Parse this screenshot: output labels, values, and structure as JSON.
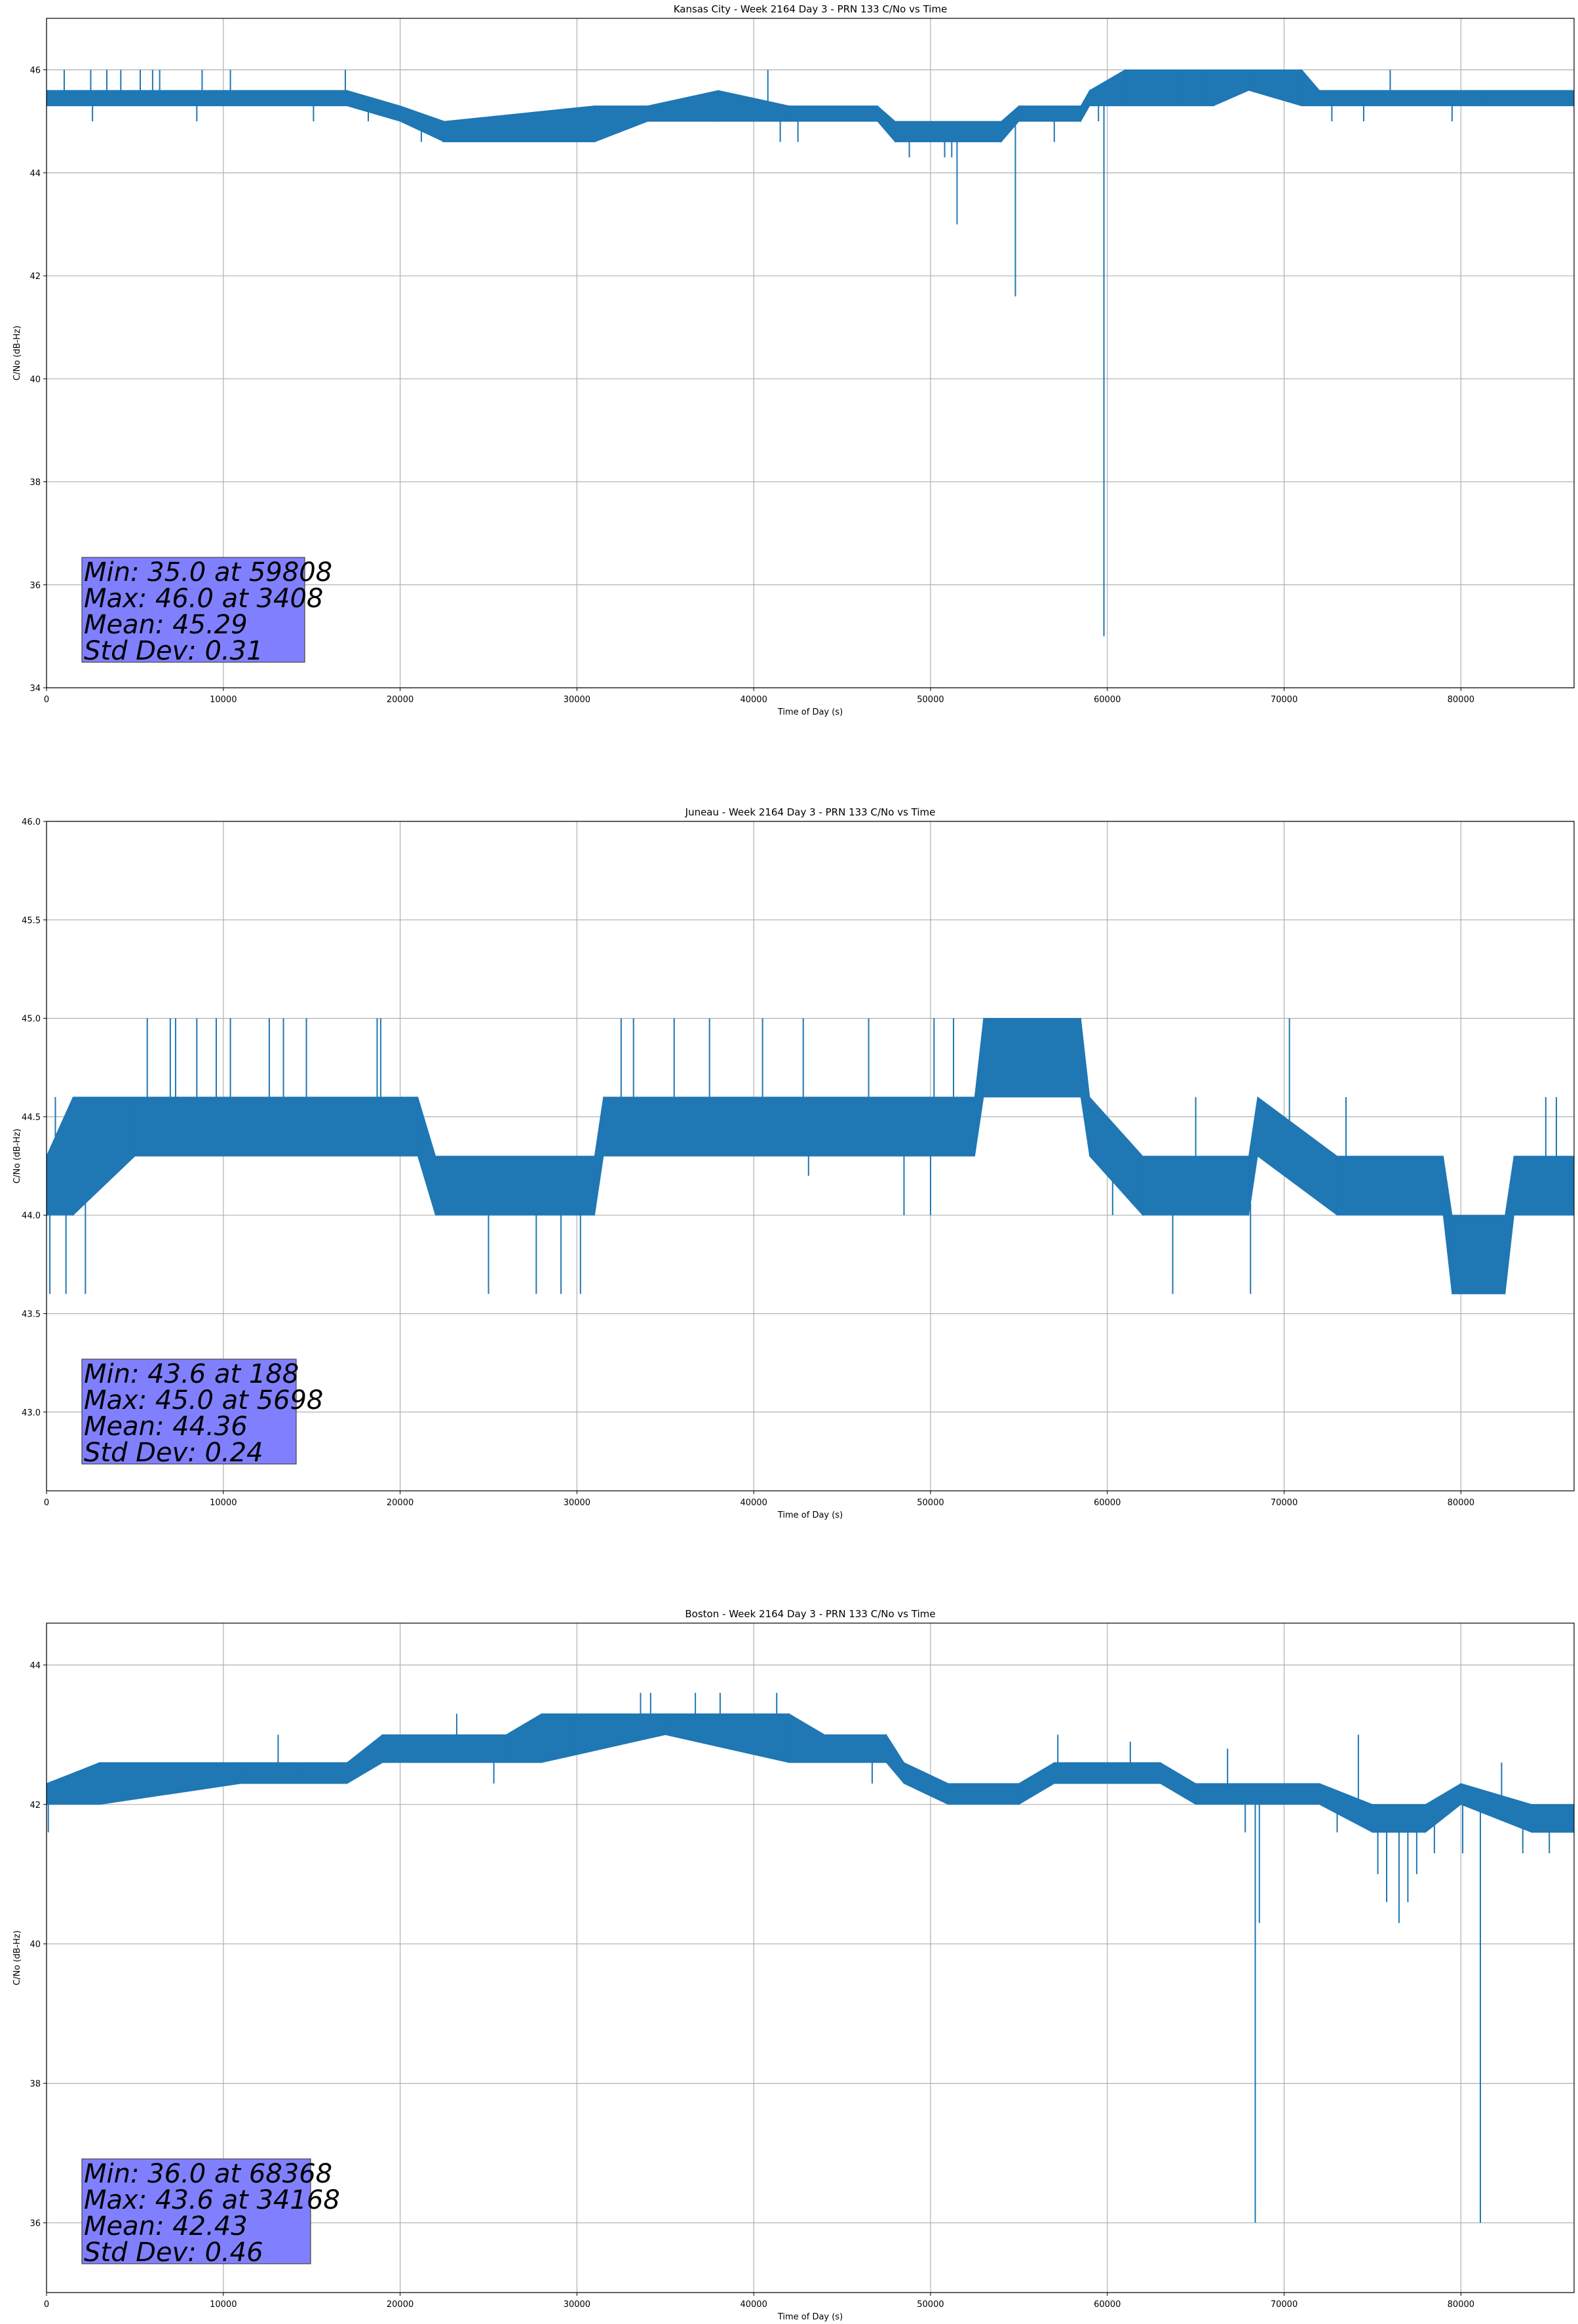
{
  "colors": {
    "series": "#1f77b4",
    "grid": "#b0b0b0",
    "stat_box": "#8080ff"
  },
  "chart_data": [
    {
      "type": "line",
      "title": "Kansas City - Week 2164 Day 3 - PRN 133 C/No vs Time",
      "xlabel": "Time of Day (s)",
      "ylabel": "C/No (dB-Hz)",
      "xlim": [
        0,
        86400
      ],
      "ylim": [
        34,
        47
      ],
      "xticks": [
        0,
        10000,
        20000,
        30000,
        40000,
        50000,
        60000,
        70000,
        80000
      ],
      "yticks": [
        34,
        36,
        38,
        40,
        42,
        44,
        46
      ],
      "ytick_decimals": 0,
      "grid": true,
      "band_series": [
        {
          "x": 0,
          "low": 45.3,
          "high": 45.6
        },
        {
          "x": 17000,
          "low": 45.3,
          "high": 45.6
        },
        {
          "x": 20000,
          "low": 45.0,
          "high": 45.3
        },
        {
          "x": 22500,
          "low": 44.6,
          "high": 45.0
        },
        {
          "x": 31000,
          "low": 44.6,
          "high": 45.3
        },
        {
          "x": 34000,
          "low": 45.0,
          "high": 45.3
        },
        {
          "x": 38000,
          "low": 45.0,
          "high": 45.6
        },
        {
          "x": 42000,
          "low": 45.0,
          "high": 45.3
        },
        {
          "x": 47000,
          "low": 45.0,
          "high": 45.3
        },
        {
          "x": 48000,
          "low": 44.6,
          "high": 45.0
        },
        {
          "x": 54000,
          "low": 44.6,
          "high": 45.0
        },
        {
          "x": 55000,
          "low": 45.0,
          "high": 45.3
        },
        {
          "x": 58500,
          "low": 45.0,
          "high": 45.3
        },
        {
          "x": 59000,
          "low": 45.3,
          "high": 45.6
        },
        {
          "x": 61000,
          "low": 45.3,
          "high": 46.0
        },
        {
          "x": 66000,
          "low": 45.3,
          "high": 46.0
        },
        {
          "x": 68000,
          "low": 45.6,
          "high": 46.0
        },
        {
          "x": 71000,
          "low": 45.3,
          "high": 46.0
        },
        {
          "x": 72000,
          "low": 45.3,
          "high": 45.6
        },
        {
          "x": 86400,
          "low": 45.3,
          "high": 45.6
        }
      ],
      "spikes": [
        {
          "x": 1000,
          "y": 46.0
        },
        {
          "x": 2500,
          "y": 46.0
        },
        {
          "x": 3408,
          "y": 46.0
        },
        {
          "x": 4200,
          "y": 46.0
        },
        {
          "x": 5300,
          "y": 46.0
        },
        {
          "x": 6000,
          "y": 46.0
        },
        {
          "x": 6400,
          "y": 46.0
        },
        {
          "x": 8800,
          "y": 46.0
        },
        {
          "x": 10400,
          "y": 46.0
        },
        {
          "x": 16900,
          "y": 46.0
        },
        {
          "x": 2600,
          "y": 45.0
        },
        {
          "x": 8500,
          "y": 45.0
        },
        {
          "x": 15100,
          "y": 45.0
        },
        {
          "x": 18200,
          "y": 45.0
        },
        {
          "x": 21200,
          "y": 44.6
        },
        {
          "x": 22400,
          "y": 44.6
        },
        {
          "x": 27300,
          "y": 44.6
        },
        {
          "x": 40800,
          "y": 46.0
        },
        {
          "x": 41500,
          "y": 44.6
        },
        {
          "x": 42500,
          "y": 44.6
        },
        {
          "x": 48800,
          "y": 44.3
        },
        {
          "x": 49500,
          "y": 44.6
        },
        {
          "x": 50800,
          "y": 44.3
        },
        {
          "x": 51200,
          "y": 44.3
        },
        {
          "x": 51500,
          "y": 43.0
        },
        {
          "x": 54800,
          "y": 41.6
        },
        {
          "x": 57000,
          "y": 44.6
        },
        {
          "x": 59808,
          "y": 35.0
        },
        {
          "x": 59500,
          "y": 45.0
        },
        {
          "x": 63500,
          "y": 46.0
        },
        {
          "x": 64200,
          "y": 46.0
        },
        {
          "x": 65400,
          "y": 46.0
        },
        {
          "x": 72700,
          "y": 45.0
        },
        {
          "x": 74500,
          "y": 45.0
        },
        {
          "x": 76000,
          "y": 46.0
        },
        {
          "x": 79500,
          "y": 45.0
        },
        {
          "x": 81500,
          "y": 45.6
        }
      ],
      "stats": [
        "Min: 35.0 at 59808",
        "Max: 46.0 at 3408",
        "Mean: 45.29",
        "Std Dev: 0.31"
      ]
    },
    {
      "type": "line",
      "title": "Juneau - Week 2164 Day 3 - PRN 133 C/No vs Time",
      "xlabel": "Time of Day (s)",
      "ylabel": "C/No (dB-Hz)",
      "xlim": [
        0,
        86400
      ],
      "ylim": [
        42.6,
        46.0
      ],
      "xticks": [
        0,
        10000,
        20000,
        30000,
        40000,
        50000,
        60000,
        70000,
        80000
      ],
      "yticks": [
        43.0,
        43.5,
        44.0,
        44.5,
        45.0,
        45.5,
        46.0
      ],
      "ytick_decimals": 1,
      "grid": true,
      "band_series": [
        {
          "x": 0,
          "low": 44.0,
          "high": 44.3
        },
        {
          "x": 1500,
          "low": 44.0,
          "high": 44.6
        },
        {
          "x": 5000,
          "low": 44.3,
          "high": 44.6
        },
        {
          "x": 21000,
          "low": 44.3,
          "high": 44.6
        },
        {
          "x": 22000,
          "low": 44.0,
          "high": 44.3
        },
        {
          "x": 31000,
          "low": 44.0,
          "high": 44.3
        },
        {
          "x": 31500,
          "low": 44.3,
          "high": 44.6
        },
        {
          "x": 52500,
          "low": 44.3,
          "high": 44.6
        },
        {
          "x": 53000,
          "low": 44.6,
          "high": 45.0
        },
        {
          "x": 58500,
          "low": 44.6,
          "high": 45.0
        },
        {
          "x": 59000,
          "low": 44.3,
          "high": 44.6
        },
        {
          "x": 62000,
          "low": 44.0,
          "high": 44.3
        },
        {
          "x": 68000,
          "low": 44.0,
          "high": 44.3
        },
        {
          "x": 68500,
          "low": 44.3,
          "high": 44.6
        },
        {
          "x": 73000,
          "low": 44.0,
          "high": 44.3
        },
        {
          "x": 79000,
          "low": 44.0,
          "high": 44.3
        },
        {
          "x": 79500,
          "low": 43.6,
          "high": 44.0
        },
        {
          "x": 82500,
          "low": 43.6,
          "high": 44.0
        },
        {
          "x": 83000,
          "low": 44.0,
          "high": 44.3
        },
        {
          "x": 86400,
          "low": 44.0,
          "high": 44.3
        }
      ],
      "spikes": [
        {
          "x": 188,
          "y": 43.6
        },
        {
          "x": 500,
          "y": 44.6
        },
        {
          "x": 1100,
          "y": 43.6
        },
        {
          "x": 2200,
          "y": 43.6
        },
        {
          "x": 5698,
          "y": 45.0
        },
        {
          "x": 7000,
          "y": 45.0
        },
        {
          "x": 7300,
          "y": 45.0
        },
        {
          "x": 8500,
          "y": 45.0
        },
        {
          "x": 9600,
          "y": 45.0
        },
        {
          "x": 10400,
          "y": 45.0
        },
        {
          "x": 12600,
          "y": 45.0
        },
        {
          "x": 13400,
          "y": 45.0
        },
        {
          "x": 14700,
          "y": 45.0
        },
        {
          "x": 18700,
          "y": 45.0
        },
        {
          "x": 18900,
          "y": 45.0
        },
        {
          "x": 25000,
          "y": 43.6
        },
        {
          "x": 27700,
          "y": 43.6
        },
        {
          "x": 29100,
          "y": 43.6
        },
        {
          "x": 30200,
          "y": 43.6
        },
        {
          "x": 32500,
          "y": 45.0
        },
        {
          "x": 33200,
          "y": 45.0
        },
        {
          "x": 35500,
          "y": 45.0
        },
        {
          "x": 37500,
          "y": 45.0
        },
        {
          "x": 40500,
          "y": 45.0
        },
        {
          "x": 42800,
          "y": 45.0
        },
        {
          "x": 46500,
          "y": 45.0
        },
        {
          "x": 43100,
          "y": 44.2
        },
        {
          "x": 48500,
          "y": 44.0
        },
        {
          "x": 50000,
          "y": 44.0
        },
        {
          "x": 50200,
          "y": 45.0
        },
        {
          "x": 51300,
          "y": 45.0
        },
        {
          "x": 60300,
          "y": 44.0
        },
        {
          "x": 63700,
          "y": 43.6
        },
        {
          "x": 65000,
          "y": 44.6
        },
        {
          "x": 68100,
          "y": 43.6
        },
        {
          "x": 70300,
          "y": 45.0
        },
        {
          "x": 73500,
          "y": 44.6
        },
        {
          "x": 84800,
          "y": 44.6
        },
        {
          "x": 85400,
          "y": 44.6
        }
      ],
      "stats": [
        "Min: 43.6 at 188",
        "Max: 45.0 at 5698",
        "Mean: 44.36",
        "Std Dev: 0.24"
      ]
    },
    {
      "type": "line",
      "title": "Boston - Week 2164 Day 3 - PRN 133 C/No vs Time",
      "xlabel": "Time of Day (s)",
      "ylabel": "C/No (dB-Hz)",
      "xlim": [
        0,
        86400
      ],
      "ylim": [
        35,
        44.6
      ],
      "xticks": [
        0,
        10000,
        20000,
        30000,
        40000,
        50000,
        60000,
        70000,
        80000
      ],
      "yticks": [
        36,
        38,
        40,
        42,
        44
      ],
      "ytick_decimals": 0,
      "grid": true,
      "band_series": [
        {
          "x": 0,
          "low": 42.0,
          "high": 42.3
        },
        {
          "x": 3000,
          "low": 42.0,
          "high": 42.6
        },
        {
          "x": 11000,
          "low": 42.3,
          "high": 42.6
        },
        {
          "x": 17000,
          "low": 42.3,
          "high": 42.6
        },
        {
          "x": 19000,
          "low": 42.6,
          "high": 43.0
        },
        {
          "x": 26000,
          "low": 42.6,
          "high": 43.0
        },
        {
          "x": 28000,
          "low": 42.6,
          "high": 43.3
        },
        {
          "x": 35000,
          "low": 43.0,
          "high": 43.3
        },
        {
          "x": 42000,
          "low": 42.6,
          "high": 43.3
        },
        {
          "x": 44000,
          "low": 42.6,
          "high": 43.0
        },
        {
          "x": 47500,
          "low": 42.6,
          "high": 43.0
        },
        {
          "x": 48500,
          "low": 42.3,
          "high": 42.6
        },
        {
          "x": 51000,
          "low": 42.0,
          "high": 42.3
        },
        {
          "x": 55000,
          "low": 42.0,
          "high": 42.3
        },
        {
          "x": 57000,
          "low": 42.3,
          "high": 42.6
        },
        {
          "x": 63000,
          "low": 42.3,
          "high": 42.6
        },
        {
          "x": 65000,
          "low": 42.0,
          "high": 42.3
        },
        {
          "x": 72000,
          "low": 42.0,
          "high": 42.3
        },
        {
          "x": 75000,
          "low": 41.6,
          "high": 42.0
        },
        {
          "x": 77000,
          "low": 41.6,
          "high": 42.0
        },
        {
          "x": 78000,
          "low": 41.6,
          "high": 42.0
        },
        {
          "x": 80000,
          "low": 42.0,
          "high": 42.3
        },
        {
          "x": 84000,
          "low": 41.6,
          "high": 42.0
        },
        {
          "x": 86400,
          "low": 41.6,
          "high": 42.0
        }
      ],
      "spikes": [
        {
          "x": 100,
          "y": 41.6
        },
        {
          "x": 13100,
          "y": 43.0
        },
        {
          "x": 14200,
          "y": 42.6
        },
        {
          "x": 23200,
          "y": 43.3
        },
        {
          "x": 25300,
          "y": 42.3
        },
        {
          "x": 29800,
          "y": 43.3
        },
        {
          "x": 33600,
          "y": 43.6
        },
        {
          "x": 34168,
          "y": 43.6
        },
        {
          "x": 36700,
          "y": 43.6
        },
        {
          "x": 38100,
          "y": 43.6
        },
        {
          "x": 41300,
          "y": 43.6
        },
        {
          "x": 46700,
          "y": 42.3
        },
        {
          "x": 48800,
          "y": 42.3
        },
        {
          "x": 57200,
          "y": 43.0
        },
        {
          "x": 61300,
          "y": 42.9
        },
        {
          "x": 66800,
          "y": 42.8
        },
        {
          "x": 67800,
          "y": 41.6
        },
        {
          "x": 68368,
          "y": 36.0
        },
        {
          "x": 68600,
          "y": 40.3
        },
        {
          "x": 73000,
          "y": 41.6
        },
        {
          "x": 74200,
          "y": 43.0
        },
        {
          "x": 75300,
          "y": 41.0
        },
        {
          "x": 75800,
          "y": 40.6
        },
        {
          "x": 76500,
          "y": 40.3
        },
        {
          "x": 77000,
          "y": 40.6
        },
        {
          "x": 77500,
          "y": 41.0
        },
        {
          "x": 78500,
          "y": 41.3
        },
        {
          "x": 80100,
          "y": 41.3
        },
        {
          "x": 81100,
          "y": 36.0
        },
        {
          "x": 82300,
          "y": 42.6
        },
        {
          "x": 83500,
          "y": 41.3
        },
        {
          "x": 85000,
          "y": 41.3
        }
      ],
      "stats": [
        "Min: 36.0 at 68368",
        "Max: 43.6 at 34168",
        "Mean: 42.43",
        "Std Dev: 0.46"
      ]
    }
  ]
}
